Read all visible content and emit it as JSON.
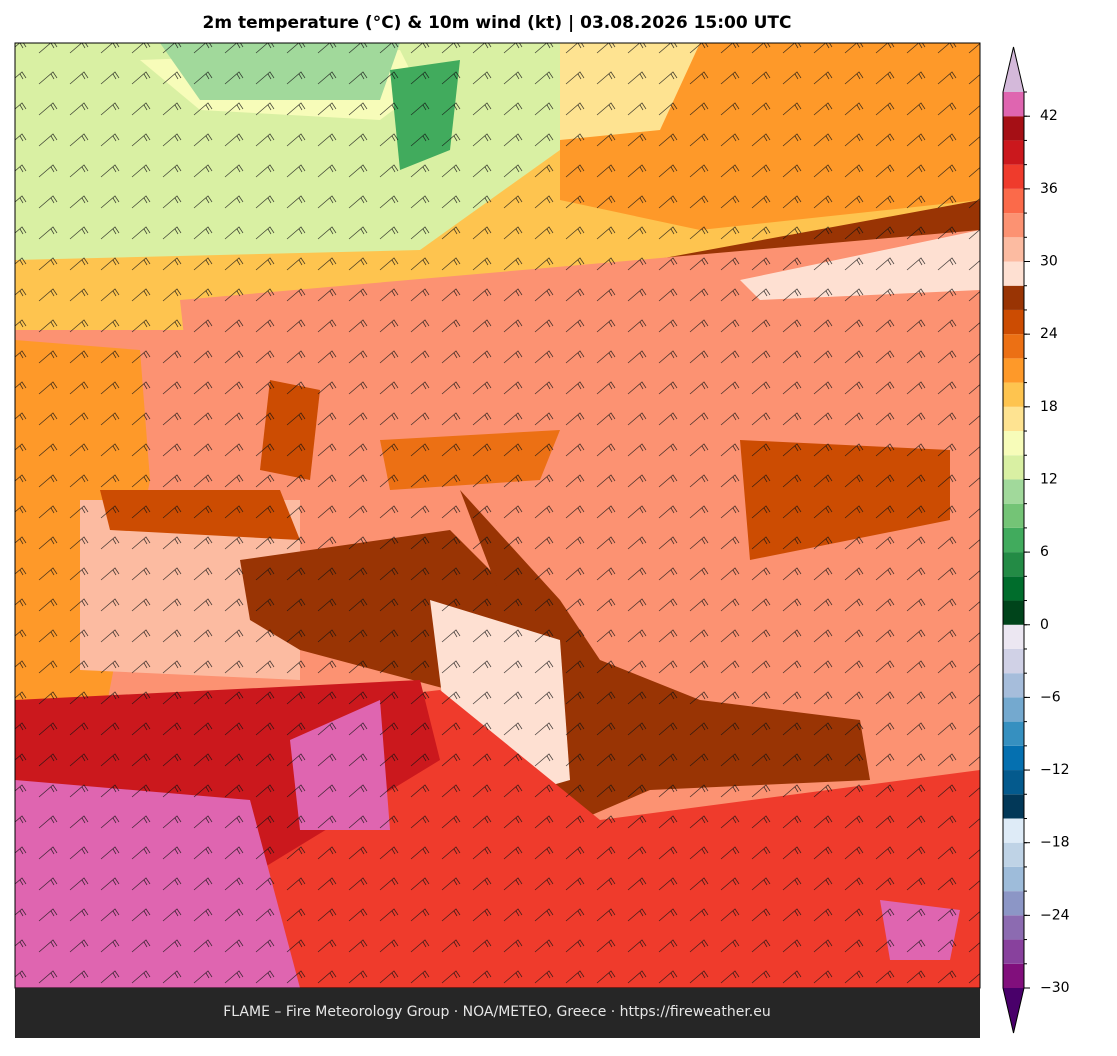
{
  "title": "2m temperature (°C) & 10m wind (kt)  |  03.08.2026 15:00 UTC",
  "footer": "FLAME – Fire Meteorology Group · NOA/METEO, Greece · https://fireweather.eu",
  "colorbar": {
    "levels": [
      -30,
      -28,
      -26,
      -24,
      -22,
      -20,
      -18,
      -16,
      -14,
      -12,
      -10,
      -8,
      -6,
      -4,
      -2,
      0,
      2,
      4,
      6,
      8,
      10,
      12,
      14,
      16,
      18,
      20,
      22,
      24,
      26,
      28,
      30,
      32,
      34,
      36,
      38,
      40,
      42,
      44
    ],
    "colors": [
      "#810f7c",
      "#88419d",
      "#8c6bb1",
      "#8c96c6",
      "#9ebcda",
      "#bfd3e6",
      "#deebf7",
      "#023858",
      "#045a8d",
      "#0570b0",
      "#3690c0",
      "#74a9cf",
      "#a6bddb",
      "#d0d1e6",
      "#ece7f2",
      "#00441b",
      "#006d2c",
      "#238b45",
      "#41ab5d",
      "#74c476",
      "#a1d99b",
      "#d9f0a3",
      "#f7fcb9",
      "#fee391",
      "#fec44f",
      "#fe9929",
      "#ec7014",
      "#cc4c02",
      "#993404",
      "#fee0d2",
      "#fcbba1",
      "#fc9272",
      "#fb6a4a",
      "#ef3b2c",
      "#cb181d",
      "#a50f15",
      "#df65b0"
    ],
    "under_color": "#49006a",
    "over_color": "#d4b9da",
    "ticks": [
      {
        "value": -30,
        "label": "−30"
      },
      {
        "value": -24,
        "label": "−24"
      },
      {
        "value": -18,
        "label": "−18"
      },
      {
        "value": -12,
        "label": "−12"
      },
      {
        "value": -6,
        "label": "−6"
      },
      0,
      6,
      12,
      18,
      24,
      30,
      36,
      42
    ]
  }
}
